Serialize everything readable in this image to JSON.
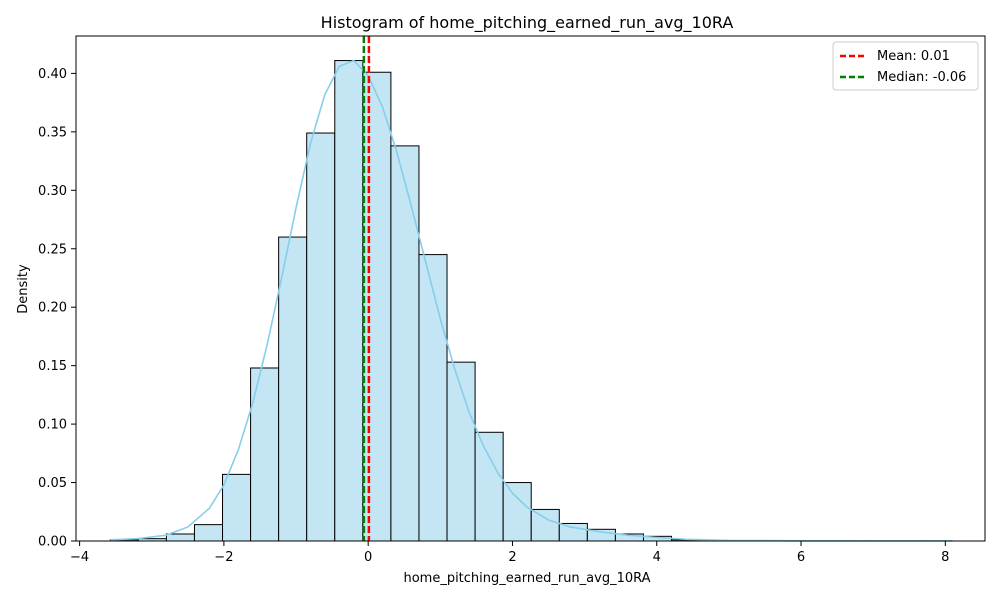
{
  "chart_data": {
    "type": "bar",
    "title": "Histogram of home_pitching_earned_run_avg_10RA",
    "xlabel": "home_pitching_earned_run_avg_10RA",
    "ylabel": "Density",
    "xlim": [
      -4.05,
      8.55
    ],
    "ylim": [
      0,
      0.432
    ],
    "xticks": [
      -4,
      -2,
      0,
      2,
      4,
      6,
      8
    ],
    "yticks": [
      0.0,
      0.05,
      0.1,
      0.15,
      0.2,
      0.25,
      0.3,
      0.35,
      0.4
    ],
    "ytick_labels": [
      "0.00",
      "0.05",
      "0.10",
      "0.15",
      "0.20",
      "0.25",
      "0.30",
      "0.35",
      "0.40"
    ],
    "bins": {
      "edges": [
        -3.575,
        -3.186,
        -2.797,
        -2.408,
        -2.019,
        -1.63,
        -1.241,
        -0.852,
        -0.463,
        -0.074,
        0.315,
        0.704,
        1.093,
        1.482,
        1.871,
        2.26,
        2.649,
        3.038,
        3.427,
        3.816,
        4.205,
        4.594,
        4.983,
        5.372,
        5.761,
        6.15,
        6.539,
        6.928,
        7.317,
        7.706,
        8.095
      ],
      "values": [
        0.001,
        0.002,
        0.006,
        0.014,
        0.057,
        0.148,
        0.26,
        0.349,
        0.411,
        0.401,
        0.338,
        0.245,
        0.153,
        0.093,
        0.05,
        0.027,
        0.015,
        0.01,
        0.006,
        0.004,
        0.001,
        0.0005,
        0.0003,
        0.0002,
        0.0001,
        0.0001,
        0.0001,
        0.0001,
        0.0001,
        0.0001
      ],
      "fill": "#c3e5f4",
      "edge": "#000000"
    },
    "kde": {
      "color": "#87ceeb",
      "x": [
        -3.575,
        -3.2,
        -2.8,
        -2.5,
        -2.2,
        -2.0,
        -1.8,
        -1.6,
        -1.4,
        -1.2,
        -1.0,
        -0.8,
        -0.6,
        -0.4,
        -0.2,
        0.0,
        0.2,
        0.4,
        0.6,
        0.8,
        1.0,
        1.2,
        1.4,
        1.6,
        1.8,
        2.0,
        2.2,
        2.5,
        2.8,
        3.2,
        3.6,
        4.0,
        4.4,
        5.0,
        6.0,
        7.0,
        8.095
      ],
      "y": [
        0.001,
        0.002,
        0.005,
        0.012,
        0.028,
        0.048,
        0.078,
        0.118,
        0.168,
        0.225,
        0.285,
        0.34,
        0.382,
        0.406,
        0.411,
        0.398,
        0.371,
        0.332,
        0.286,
        0.238,
        0.19,
        0.147,
        0.11,
        0.081,
        0.058,
        0.041,
        0.029,
        0.018,
        0.012,
        0.008,
        0.005,
        0.003,
        0.0015,
        0.0005,
        0.0002,
        0.0001,
        0.0001
      ]
    },
    "mean": {
      "value": 0.01,
      "label": "Mean: 0.01",
      "color": "#ff0000"
    },
    "median": {
      "value": -0.06,
      "label": "Median: -0.06",
      "color": "#008000"
    },
    "legend": "top-right",
    "grid": false
  }
}
